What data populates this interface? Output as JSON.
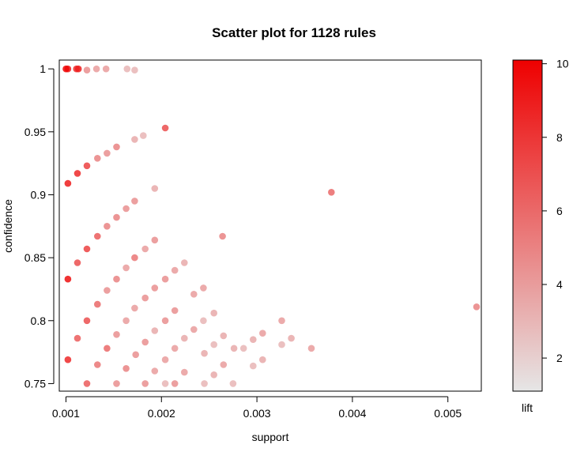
{
  "chart_data": {
    "type": "scatter",
    "title": "Scatter plot for 1128 rules",
    "xlabel": "support",
    "ylabel": "confidence",
    "xlim": [
      0.00093,
      0.00535
    ],
    "ylim": [
      0.744,
      1.007
    ],
    "x_ticks": [
      {
        "value": 0.001,
        "label": "0.001"
      },
      {
        "value": 0.002,
        "label": "0.002"
      },
      {
        "value": 0.003,
        "label": "0.003"
      },
      {
        "value": 0.004,
        "label": "0.004"
      },
      {
        "value": 0.005,
        "label": "0.005"
      }
    ],
    "y_ticks": [
      {
        "value": 0.75,
        "label": "0.75"
      },
      {
        "value": 0.8,
        "label": "0.8"
      },
      {
        "value": 0.85,
        "label": "0.85"
      },
      {
        "value": 0.9,
        "label": "0.9"
      },
      {
        "value": 0.95,
        "label": "0.95"
      },
      {
        "value": 1.0,
        "label": "1"
      }
    ],
    "colorbar": {
      "label": "lift",
      "range": [
        1.1,
        10.1
      ],
      "ticks": [
        {
          "value": 2,
          "label": "2"
        },
        {
          "value": 4,
          "label": "4"
        },
        {
          "value": 6,
          "label": "6"
        },
        {
          "value": 8,
          "label": "8"
        },
        {
          "value": 10,
          "label": "10"
        }
      ],
      "color_low": "#e6e6e6",
      "color_high": "#ee0000"
    },
    "points": [
      [
        0.001,
        1.0,
        10.0
      ],
      [
        0.00102,
        1.0,
        9.0
      ],
      [
        0.00111,
        1.0,
        8.5
      ],
      [
        0.00113,
        1.0,
        9.0
      ],
      [
        0.00122,
        0.999,
        4.5
      ],
      [
        0.00132,
        1.0,
        4.0
      ],
      [
        0.00142,
        1.0,
        4.0
      ],
      [
        0.00164,
        1.0,
        3.0
      ],
      [
        0.00172,
        0.999,
        3.0
      ],
      [
        0.00204,
        0.953,
        7.0
      ],
      [
        0.00153,
        0.938,
        5.0
      ],
      [
        0.00143,
        0.933,
        4.5
      ],
      [
        0.00133,
        0.929,
        5.0
      ],
      [
        0.00122,
        0.923,
        7.5
      ],
      [
        0.00112,
        0.917,
        8.5
      ],
      [
        0.00102,
        0.909,
        9.0
      ],
      [
        0.00172,
        0.944,
        3.5
      ],
      [
        0.00181,
        0.947,
        3.0
      ],
      [
        0.00193,
        0.905,
        3.5
      ],
      [
        0.00378,
        0.902,
        6.0
      ],
      [
        0.00172,
        0.895,
        4.5
      ],
      [
        0.00163,
        0.889,
        4.5
      ],
      [
        0.00153,
        0.882,
        5.0
      ],
      [
        0.00143,
        0.875,
        5.0
      ],
      [
        0.00133,
        0.867,
        6.5
      ],
      [
        0.00122,
        0.857,
        7.5
      ],
      [
        0.00112,
        0.846,
        7.0
      ],
      [
        0.00102,
        0.833,
        9.5
      ],
      [
        0.00264,
        0.867,
        5.0
      ],
      [
        0.00193,
        0.864,
        4.5
      ],
      [
        0.00183,
        0.857,
        4.0
      ],
      [
        0.00172,
        0.85,
        5.5
      ],
      [
        0.00163,
        0.842,
        4.0
      ],
      [
        0.00153,
        0.833,
        5.0
      ],
      [
        0.00143,
        0.824,
        4.5
      ],
      [
        0.00133,
        0.813,
        6.0
      ],
      [
        0.00122,
        0.8,
        7.0
      ],
      [
        0.00112,
        0.786,
        6.5
      ],
      [
        0.00102,
        0.769,
        8.5
      ],
      [
        0.00224,
        0.846,
        3.5
      ],
      [
        0.00214,
        0.84,
        4.0
      ],
      [
        0.00204,
        0.833,
        4.5
      ],
      [
        0.00193,
        0.826,
        4.5
      ],
      [
        0.00183,
        0.818,
        4.5
      ],
      [
        0.00172,
        0.81,
        4.0
      ],
      [
        0.00163,
        0.8,
        4.0
      ],
      [
        0.00153,
        0.789,
        4.5
      ],
      [
        0.00143,
        0.778,
        6.0
      ],
      [
        0.00133,
        0.765,
        5.5
      ],
      [
        0.00122,
        0.75,
        6.5
      ],
      [
        0.00244,
        0.826,
        4.0
      ],
      [
        0.00234,
        0.821,
        4.0
      ],
      [
        0.00214,
        0.808,
        4.5
      ],
      [
        0.00204,
        0.8,
        4.5
      ],
      [
        0.00193,
        0.792,
        3.5
      ],
      [
        0.00183,
        0.783,
        4.5
      ],
      [
        0.00173,
        0.773,
        4.5
      ],
      [
        0.00163,
        0.762,
        5.0
      ],
      [
        0.00153,
        0.75,
        4.5
      ],
      [
        0.00255,
        0.806,
        3.5
      ],
      [
        0.00244,
        0.8,
        3.0
      ],
      [
        0.00234,
        0.793,
        4.0
      ],
      [
        0.00224,
        0.786,
        3.5
      ],
      [
        0.00214,
        0.778,
        4.0
      ],
      [
        0.00204,
        0.769,
        4.0
      ],
      [
        0.00193,
        0.76,
        4.0
      ],
      [
        0.00183,
        0.75,
        4.5
      ],
      [
        0.00265,
        0.788,
        3.5
      ],
      [
        0.00255,
        0.781,
        3.0
      ],
      [
        0.00245,
        0.774,
        3.5
      ],
      [
        0.00224,
        0.759,
        4.0
      ],
      [
        0.00214,
        0.75,
        4.5
      ],
      [
        0.00276,
        0.778,
        3.5
      ],
      [
        0.00265,
        0.765,
        4.0
      ],
      [
        0.00255,
        0.757,
        3.5
      ],
      [
        0.00245,
        0.75,
        3.0
      ],
      [
        0.00296,
        0.785,
        3.5
      ],
      [
        0.00286,
        0.778,
        3.0
      ],
      [
        0.00296,
        0.764,
        3.0
      ],
      [
        0.00306,
        0.79,
        4.0
      ],
      [
        0.00306,
        0.769,
        3.5
      ],
      [
        0.00275,
        0.75,
        3.0
      ],
      [
        0.00326,
        0.8,
        4.0
      ],
      [
        0.00326,
        0.781,
        3.0
      ],
      [
        0.00336,
        0.786,
        3.5
      ],
      [
        0.00357,
        0.778,
        4.0
      ],
      [
        0.0053,
        0.811,
        5.0
      ],
      [
        0.00204,
        0.75,
        3.0
      ]
    ]
  }
}
